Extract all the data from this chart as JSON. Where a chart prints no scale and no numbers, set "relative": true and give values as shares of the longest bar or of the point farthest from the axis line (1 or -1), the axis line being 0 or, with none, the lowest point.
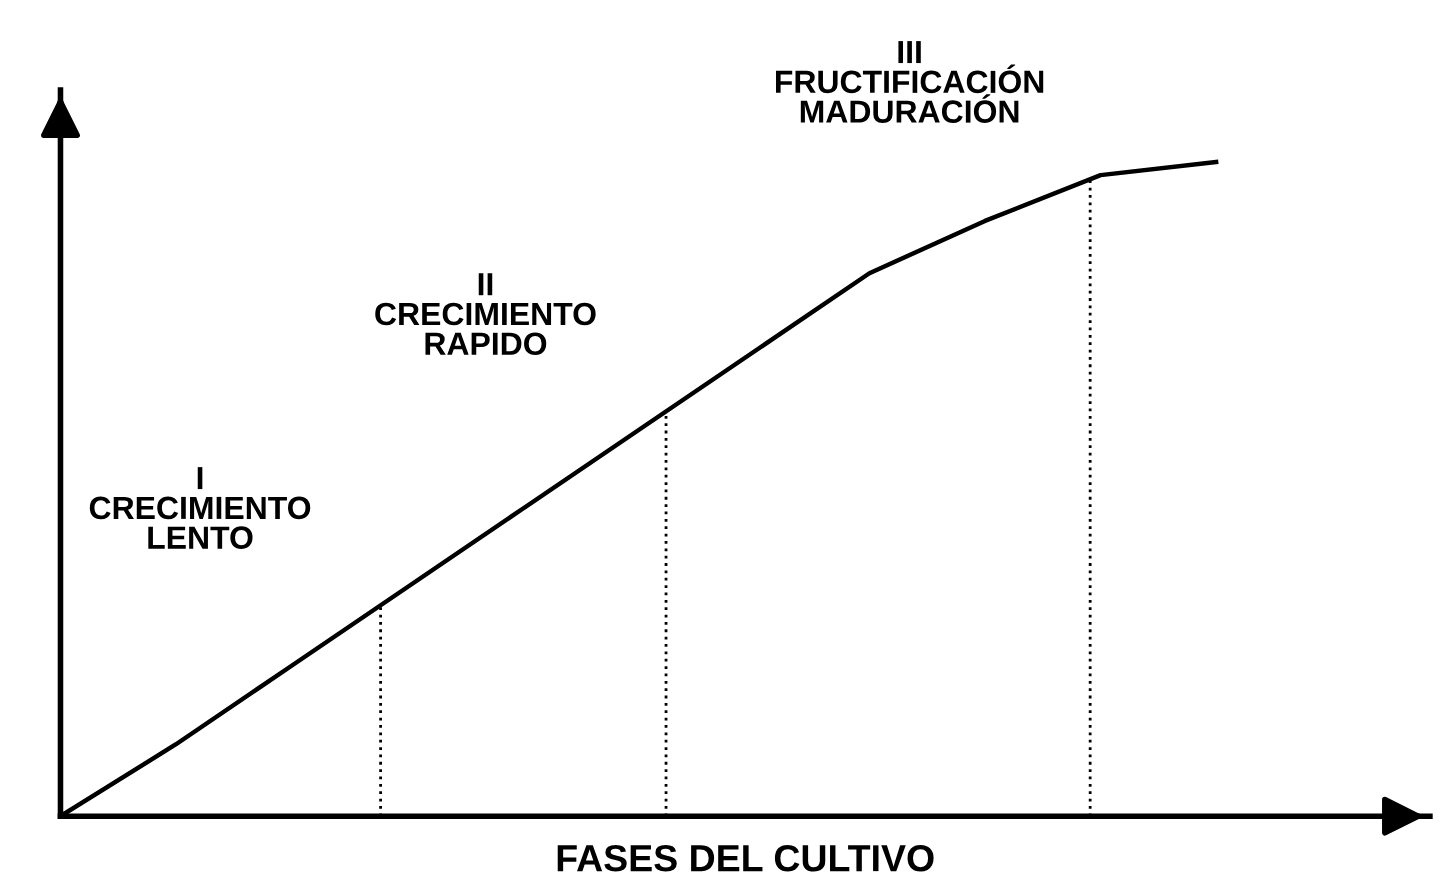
{
  "chart_data": {
    "type": "line",
    "relative": true,
    "xlabel": "FASES DEL CULTIVO",
    "categories": [
      null,
      null,
      null,
      null,
      null,
      null,
      null,
      null,
      null,
      null,
      null
    ],
    "series": [
      {
        "color": "#000000",
        "values": [
          0,
          0.11,
          0.23,
          0.35,
          0.47,
          0.59,
          0.71,
          0.83,
          0.91,
          0.98,
          1
        ]
      }
    ],
    "annotations": [
      "I\nCRECIMIENTO\nLENTO",
      "II\nCRECIMIENTO\nRAPIDO",
      "III\nFRUCTIFICACIÓN\nMADURACIÓN"
    ],
    "marker": "none",
    "line_style": "solid"
  }
}
